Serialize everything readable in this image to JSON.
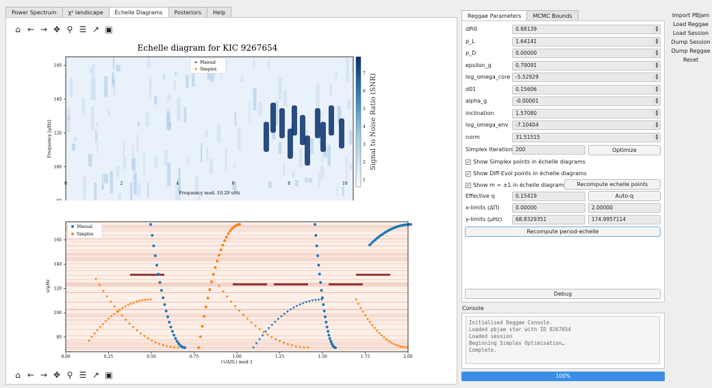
{
  "tabs": [
    "Power Spectrum",
    "χ² landscape",
    "Échelle Diagrams",
    "Posteriors",
    "Help"
  ],
  "active_tab": 2,
  "toolbar_icons": [
    "home-icon",
    "back-icon",
    "forward-icon",
    "pan-icon",
    "zoom-icon",
    "configure-icon",
    "edit-axes-icon",
    "save-icon"
  ],
  "top_plot": {
    "title": "Echelle diagram for KIC 9267654",
    "xlabel": "Frequency mod. 10.29 uHz",
    "ylabel": "Frequency [μHz]",
    "cbar_label": "Signal to Noise Ratio (SNR)",
    "legend": [
      "Manual",
      "Simplex"
    ],
    "xticks": [
      "0",
      "2",
      "4",
      "6",
      "8",
      "10"
    ],
    "yticks": [
      "80",
      "100",
      "120",
      "140",
      "160"
    ],
    "cticks": [
      "1",
      "2",
      "3",
      "4",
      "5",
      "6",
      "7"
    ]
  },
  "bottom_plot": {
    "xlabel": "(τ/ΔΠ₁) mod 1",
    "ylabel": "ν/μHz",
    "legend": [
      "Manual",
      "Simplex"
    ],
    "xticks": [
      "0.00",
      "0.25",
      "0.50",
      "0.75",
      "1.00",
      "1.25",
      "1.50",
      "1.75",
      "2.00"
    ],
    "yticks": [
      "80",
      "100",
      "120",
      "140",
      "160"
    ]
  },
  "right_tabs": [
    "Reggae Parameters",
    "MCMC Bounds"
  ],
  "params": [
    {
      "label": "dPi0",
      "value": "0.88139"
    },
    {
      "label": "p_L",
      "value": "1.64141"
    },
    {
      "label": "p_D",
      "value": "0.00000"
    },
    {
      "label": "epsilon_g",
      "value": "0.79091"
    },
    {
      "label": "log_omega_core",
      "value": "-5.52929"
    },
    {
      "label": "d01",
      "value": "0.15606"
    },
    {
      "label": "alpha_g",
      "value": "-0.00001"
    },
    {
      "label": "inclination",
      "value": "1.57080"
    },
    {
      "label": "log_omega_env",
      "value": "-7.10404"
    },
    {
      "label": "norm",
      "value": "31.51515"
    }
  ],
  "simplex_iterations": {
    "label": "Simplex Iterations",
    "value": "200"
  },
  "optimize_label": "Optimize",
  "checks": [
    "Show Simplex points in échelle diagrams",
    "Show Diff-Evol points in échelle diagrams",
    "Show m = ±1 in échelle diagrams"
  ],
  "recompute_echelle": "Recompute echelle points",
  "effective_q": {
    "label": "Effective q",
    "value": "0.15419"
  },
  "autoq": "Auto-q",
  "xlimits": {
    "label": "x-limits (ΔΠ)",
    "min": "0.00000",
    "max": "2.00000"
  },
  "ylimits": {
    "label": "y-limits (μHz)",
    "min": "68.8329351",
    "max": "174.9957114"
  },
  "recompute_period": "Recompute period-echelle",
  "debug": "Debug",
  "console_title": "Console",
  "console_lines": [
    "Initialised Reggae Console.",
    "Loaded pbjam star with ID 9267654",
    "Loaded session",
    "Beginning Simplex Optimisation…",
    "Complete."
  ],
  "progress": {
    "value": 100,
    "label": "100%"
  },
  "side_buttons": [
    "Import PBJam",
    "Load Reggae",
    "Load Session",
    "Dump Session",
    "Dump Reggae",
    "Reset"
  ]
}
